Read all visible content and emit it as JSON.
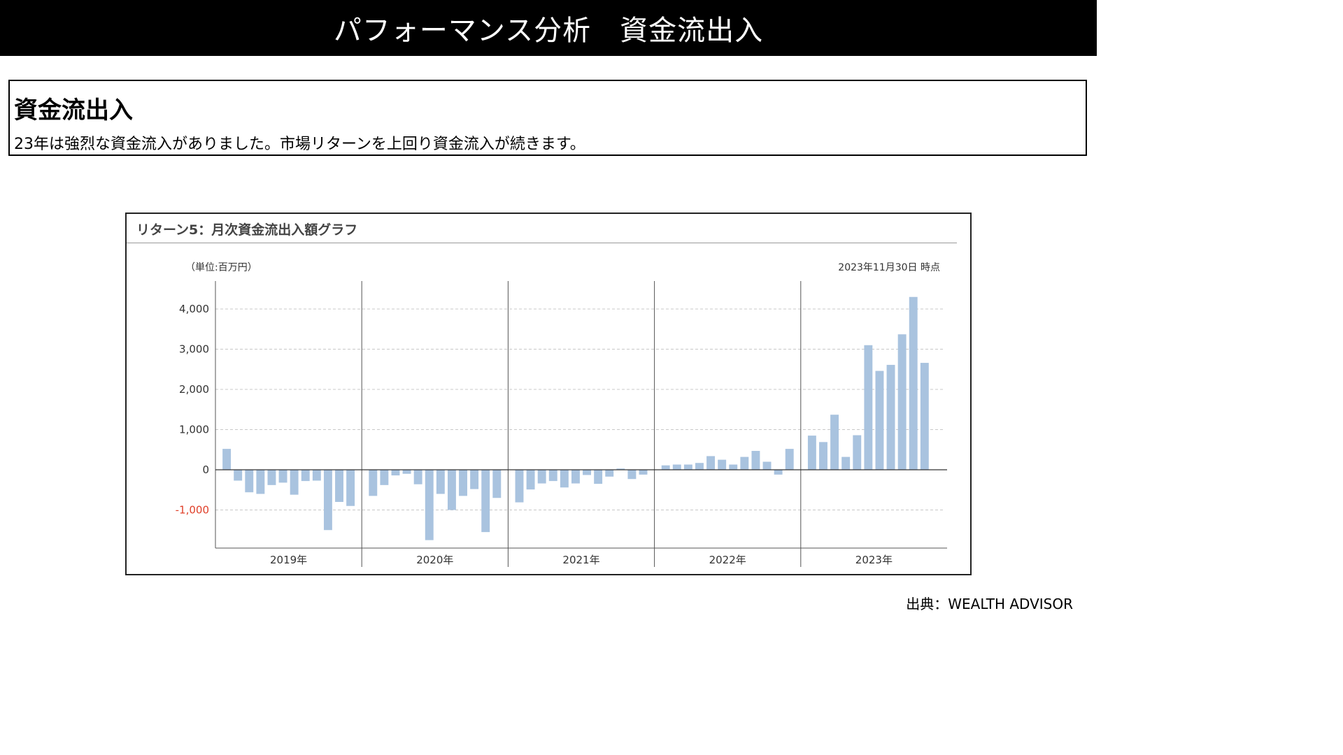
{
  "header": {
    "title": "パフォーマンス分析　資金流出入"
  },
  "summary": {
    "heading": "資金流出入",
    "body": "23年は強烈な資金流入がありました。市場リターンを上回り資金流入が続きます。"
  },
  "chart": {
    "title": "リターン5：月次資金流出入額グラフ",
    "unit": "（単位:百万円）",
    "as_of": "2023年11月30日 時点"
  },
  "source": "出典：WEALTH ADVISOR",
  "colors": {
    "bar": "#a9c3df",
    "negative_tick": "#e0402a",
    "grid": "#c8c8c8"
  },
  "chart_data": {
    "type": "bar",
    "title": "リターン5：月次資金流出入額グラフ",
    "ylabel": "（単位:百万円）",
    "ylim": [
      -1900,
      4700
    ],
    "yticks": [
      4000,
      3000,
      2000,
      1000,
      0,
      -1000
    ],
    "ytick_labels": [
      "4,000",
      "3,000",
      "2,000",
      "1,000",
      "0",
      "-1,000"
    ],
    "grid": true,
    "groups": [
      "2019年",
      "2020年",
      "2021年",
      "2022年",
      "2023年"
    ],
    "series": [
      {
        "values": [
          520,
          -270,
          -560,
          -600,
          -380,
          -320,
          -620,
          -280,
          -270,
          -1500,
          -800,
          -900,
          -650,
          -380,
          -140,
          -100,
          -360,
          -1750,
          -600,
          -1000,
          -650,
          -480,
          -1550,
          -700,
          -810,
          -490,
          -340,
          -280,
          -440,
          -340,
          -130,
          -350,
          -170,
          30,
          -230,
          -120,
          110,
          130,
          130,
          170,
          340,
          250,
          130,
          320,
          470,
          200,
          -120,
          520,
          850,
          690,
          1370,
          320,
          860,
          3100,
          2460,
          2610,
          3370,
          4300,
          2660
        ]
      }
    ]
  }
}
